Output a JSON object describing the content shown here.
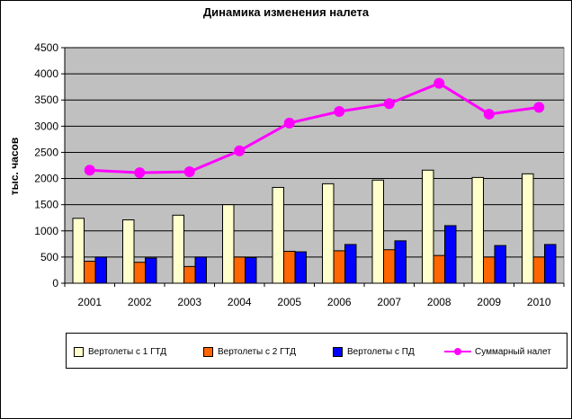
{
  "chart_data": {
    "type": "bar",
    "title": "Динамика изменения налета",
    "ylabel": "тыс. часов",
    "xlabel": "",
    "categories": [
      "2001",
      "2002",
      "2003",
      "2004",
      "2005",
      "2006",
      "2007",
      "2008",
      "2009",
      "2010"
    ],
    "ylim": [
      0,
      4500
    ],
    "yticks": [
      "0",
      "500",
      "1000",
      "1500",
      "2000",
      "2500",
      "3000",
      "3500",
      "4000",
      "4500"
    ],
    "grid": true,
    "legend_position": "bottom",
    "series": [
      {
        "name": "Вертолеты с 1 ГТД",
        "kind": "bar",
        "color": "#FFFFCC",
        "values": [
          1240,
          1210,
          1300,
          1500,
          1830,
          1900,
          1970,
          2160,
          2020,
          2090
        ]
      },
      {
        "name": "Вертолеты с 2 ГТД",
        "kind": "bar",
        "color": "#FF6600",
        "values": [
          420,
          400,
          320,
          500,
          610,
          620,
          640,
          530,
          500,
          500
        ]
      },
      {
        "name": "Вертолеты с ПД",
        "kind": "bar",
        "color": "#0000FF",
        "values": [
          500,
          480,
          500,
          490,
          600,
          740,
          810,
          1100,
          720,
          740
        ]
      },
      {
        "name": "Суммарный налет",
        "kind": "line",
        "color": "#FF00FF",
        "values": [
          2160,
          2110,
          2130,
          2530,
          3060,
          3280,
          3430,
          3820,
          3230,
          3360
        ]
      }
    ]
  }
}
